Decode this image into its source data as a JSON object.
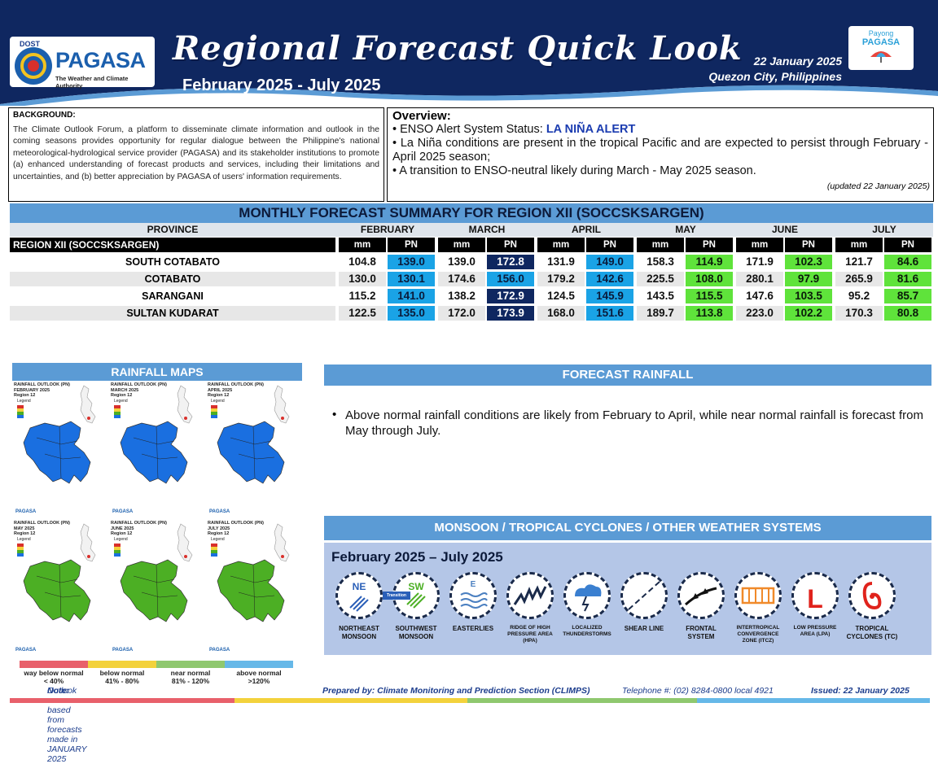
{
  "header": {
    "agency_prefix": "DOST",
    "agency": "PAGASA",
    "agency_tagline": "The Weather and Climate Authority",
    "title": "Regional Forecast Quick Look",
    "period": "February 2025 - July 2025",
    "issue_date": "22 January 2025",
    "place": "Quezon City, Philippines",
    "partner_top": "Payong",
    "partner_bottom": "PAGASA"
  },
  "background": {
    "title": "BACKGROUND:",
    "text": "The Climate Outlook Forum, a platform to disseminate climate information and outlook in the coming seasons provides opportunity for regular dialogue between the Philippine's national meteorological-hydrological service provider (PAGASA) and its stakeholder institutions to promote (a) enhanced understanding of forecast products and services, including their limitations and uncertainties, and (b) better appreciation by PAGASA of users' information requirements."
  },
  "overview": {
    "title": "Overview:",
    "line1_prefix": "• ENSO Alert System Status: ",
    "line1_alert": "LA NIÑA ALERT",
    "line2": "• La Niña conditions are present in the tropical Pacific and are expected to persist through February - April 2025 season;",
    "line3": "• A transition to ENSO-neutral likely during March - May 2025 season.",
    "updated": "(updated 22 January 2025)"
  },
  "summary": {
    "title": "MONTHLY FORECAST SUMMARY FOR REGION XII (SOCCSKSARGEN)",
    "province_header": "PROVINCE",
    "region_label": "REGION XII (SOCCSKSARGEN)",
    "months": [
      "FEBRUARY",
      "MARCH",
      "APRIL",
      "MAY",
      "JUNE",
      "JULY"
    ],
    "mm_label": "mm",
    "pn_label": "PN",
    "rows": [
      {
        "province": "SOUTH COTABATO",
        "values": [
          [
            "104.8",
            "139.0",
            "above"
          ],
          [
            "139.0",
            "172.8",
            "way"
          ],
          [
            "131.9",
            "149.0",
            "above"
          ],
          [
            "158.3",
            "114.9",
            "near"
          ],
          [
            "171.9",
            "102.3",
            "near"
          ],
          [
            "121.7",
            "84.6",
            "near"
          ]
        ]
      },
      {
        "province": "COTABATO",
        "values": [
          [
            "130.0",
            "130.1",
            "above"
          ],
          [
            "174.6",
            "156.0",
            "above"
          ],
          [
            "179.2",
            "142.6",
            "above"
          ],
          [
            "225.5",
            "108.0",
            "near"
          ],
          [
            "280.1",
            "97.9",
            "near"
          ],
          [
            "265.9",
            "81.6",
            "near"
          ]
        ]
      },
      {
        "province": "SARANGANI",
        "values": [
          [
            "115.2",
            "141.0",
            "above"
          ],
          [
            "138.2",
            "172.9",
            "way"
          ],
          [
            "124.5",
            "145.9",
            "above"
          ],
          [
            "143.5",
            "115.5",
            "near"
          ],
          [
            "147.6",
            "103.5",
            "near"
          ],
          [
            "95.2",
            "85.7",
            "near"
          ]
        ]
      },
      {
        "province": "SULTAN KUDARAT",
        "values": [
          [
            "122.5",
            "135.0",
            "above"
          ],
          [
            "172.0",
            "173.9",
            "way"
          ],
          [
            "168.0",
            "151.6",
            "above"
          ],
          [
            "189.7",
            "113.8",
            "near"
          ],
          [
            "223.0",
            "102.2",
            "near"
          ],
          [
            "170.3",
            "80.8",
            "near"
          ]
        ]
      }
    ],
    "colors": {
      "above": "#1aa3e6",
      "way": "#0f2760",
      "near": "#5fe33b"
    }
  },
  "rainfall_maps": {
    "title": "RAINFALL MAPS",
    "tiles": [
      {
        "title": "RAINFALL OUTLOOK (PN)",
        "month": "FEBRUARY 2025",
        "region": "Region 12",
        "legend": "Legend",
        "fill": "#1a6fe0"
      },
      {
        "title": "RAINFALL OUTLOOK (PN)",
        "month": "MARCH 2025",
        "region": "Region 12",
        "legend": "Legend",
        "fill": "#1a6fe0"
      },
      {
        "title": "RAINFALL OUTLOOK (PN)",
        "month": "APRIL 2025",
        "region": "Region 12",
        "legend": "Legend",
        "fill": "#1a6fe0"
      },
      {
        "title": "RAINFALL OUTLOOK (PN)",
        "month": "MAY 2025",
        "region": "Region 12",
        "legend": "Legend",
        "fill": "#4caf24"
      },
      {
        "title": "RAINFALL OUTLOOK (PN)",
        "month": "JUNE 2025",
        "region": "Region 12",
        "legend": "Legend",
        "fill": "#4caf24"
      },
      {
        "title": "RAINFALL OUTLOOK (PN)",
        "month": "JULY 2025",
        "region": "Region 12",
        "legend": "Legend",
        "fill": "#4caf24"
      }
    ],
    "footer_label": "PAGASA",
    "scale": [
      {
        "label": "way below normal",
        "range": "< 40%",
        "color": "#e8606b"
      },
      {
        "label": "below normal",
        "range": "41% - 80%",
        "color": "#f3d23c"
      },
      {
        "label": "near normal",
        "range": "81% - 120%",
        "color": "#8fc86f"
      },
      {
        "label": "above normal",
        "range": ">120%",
        "color": "#66b8e8"
      }
    ]
  },
  "forecast_rainfall": {
    "title": "FORECAST RAINFALL",
    "bullet": "•",
    "text": "Above normal rainfall conditions are likely from February to April, while near normal rainfall is forecast from May through July."
  },
  "weather_systems": {
    "title": "MONSOON / TROPICAL CYCLONES / OTHER WEATHER SYSTEMS",
    "period": "February 2025 – July 2025",
    "transition_label": "Transition",
    "items": [
      {
        "name": "NORTHEAST MONSOON",
        "icon": "northeast-monsoon-icon",
        "code": "NE"
      },
      {
        "name": "SOUTHWEST MONSOON",
        "icon": "southwest-monsoon-icon",
        "code": "SW"
      },
      {
        "name": "EASTERLIES",
        "icon": "easterlies-icon",
        "code": "E"
      },
      {
        "name": "RIDGE OF HIGH PRESSURE AREA (HPA)",
        "icon": "ridge-hpa-icon",
        "code": ""
      },
      {
        "name": "LOCALIZED THUNDERSTORMS",
        "icon": "thunderstorm-icon",
        "code": ""
      },
      {
        "name": "SHEAR LINE",
        "icon": "shear-line-icon",
        "code": ""
      },
      {
        "name": "FRONTAL SYSTEM",
        "icon": "frontal-system-icon",
        "code": ""
      },
      {
        "name": "INTERTROPICAL CONVERGENCE ZONE (ITCZ)",
        "icon": "itcz-icon",
        "code": ""
      },
      {
        "name": "LOW PRESSURE AREA (LPA)",
        "icon": "low-pressure-icon",
        "code": "L"
      },
      {
        "name": "TROPICAL CYCLONES (TC)",
        "icon": "tropical-cyclone-icon",
        "code": ""
      }
    ]
  },
  "footer": {
    "note_label": "Note:",
    "note": "Outlook was based from forecasts made in JANUARY 2025",
    "prepared": "Prepared by: Climate Monitoring and Prediction Section (CLIMPS)",
    "telephone": "Telephone #: (02) 8284-0800 local 4921",
    "issued": "Issued: 22 January 2025"
  }
}
